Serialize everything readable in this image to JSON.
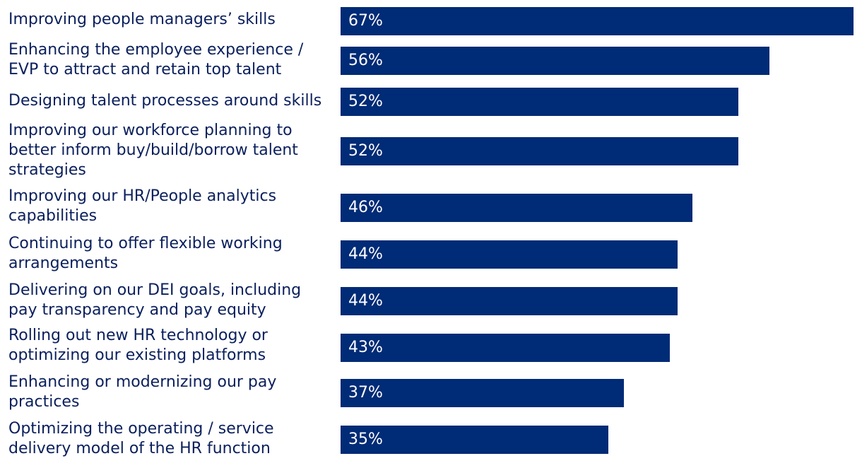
{
  "chart_data": {
    "type": "bar",
    "orientation": "horizontal",
    "categories": [
      "Improving people managers’ skills",
      "Enhancing the employee experience / EVP to attract and retain top talent",
      "Designing talent processes around skills",
      "Improving our workforce planning to better inform buy/build/borrow talent strategies",
      "Improving our HR/People analytics capabilities",
      "Continuing to offer flexible working arrangements",
      "Delivering on our DEI goals, including pay transparency and pay equity",
      "Rolling out new HR technology or optimizing our existing platforms",
      "Enhancing or modernizing our pay practices",
      "Optimizing the operating / service delivery model of the HR function"
    ],
    "values": [
      67,
      56,
      52,
      52,
      46,
      44,
      44,
      43,
      37,
      35
    ],
    "value_labels": [
      "67%",
      "56%",
      "52%",
      "52%",
      "46%",
      "44%",
      "44%",
      "43%",
      "37%",
      "35%"
    ],
    "xlim": [
      0,
      67
    ],
    "grid": false,
    "legend": "none",
    "bar_color": "#002b76",
    "label_color": "#0a1f5c"
  }
}
